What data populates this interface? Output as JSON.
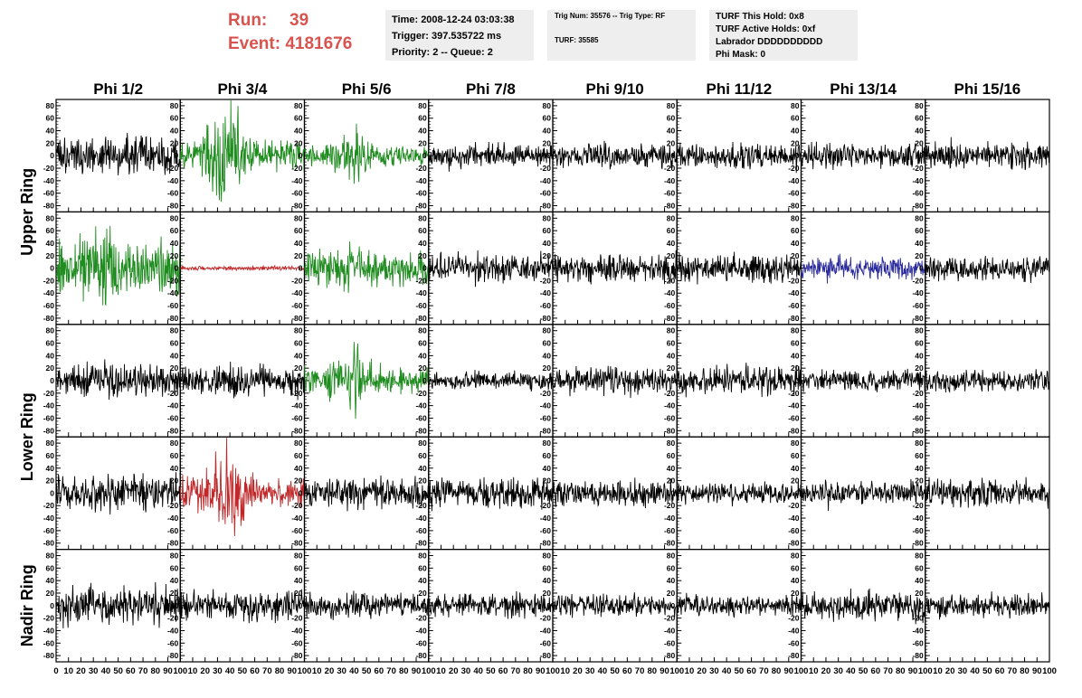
{
  "header": {
    "run_label": "Run:",
    "run_value": "39",
    "event_label": "Event:",
    "event_value": "4181676"
  },
  "info_time": {
    "time": "Time: 2008-12-24 03:03:38",
    "trigger": "Trigger: 397.535722 ms",
    "priority": "Priority: 2 -- Queue: 2"
  },
  "info_trig": {
    "trig": "Trig Num: 35576 -- Trig Type: RF",
    "turf": "TURF: 35585"
  },
  "info_turf": {
    "hold": "TURF This Hold: 0x8",
    "active": "TURF Active Holds: 0xf",
    "labrador": "Labrador DDDDDDDDDD",
    "phimask": "Phi Mask: 0"
  },
  "chart_data": {
    "type": "line",
    "columns": [
      "Phi 1/2",
      "Phi 3/4",
      "Phi 5/6",
      "Phi 7/8",
      "Phi 9/10",
      "Phi 11/12",
      "Phi 13/14",
      "Phi 15/16"
    ],
    "row_groups": [
      {
        "label": "Upper Ring",
        "rows": [
          0,
          1
        ]
      },
      {
        "label": "Lower Ring",
        "rows": [
          2,
          3
        ]
      },
      {
        "label": "Nadir Ring",
        "rows": [
          4
        ]
      }
    ],
    "xlim": [
      0,
      100
    ],
    "ylim": [
      -90,
      90
    ],
    "yticks": [
      -80,
      -60,
      -40,
      -20,
      0,
      20,
      40,
      60,
      80
    ],
    "first_panel_xticks": [
      "0",
      "10",
      "20",
      "30",
      "40",
      "50",
      "60",
      "70",
      "80",
      "90",
      "100"
    ],
    "panel_xticks": [
      "10",
      "20",
      "30",
      "40",
      "50",
      "60",
      "70",
      "80",
      "90",
      "100"
    ],
    "colors": {
      "normal": "#000000",
      "green": "#1f8c1f",
      "red": "#c0282a",
      "blue": "#2a2a9c"
    },
    "panels": [
      [
        {
          "color": "normal",
          "amp": 18,
          "burst": 0
        },
        {
          "color": "green",
          "amp": 14,
          "burst": 38
        },
        {
          "color": "green",
          "amp": 9,
          "burst": 20
        },
        {
          "color": "normal",
          "amp": 12,
          "burst": 0
        },
        {
          "color": "normal",
          "amp": 11,
          "burst": 0
        },
        {
          "color": "normal",
          "amp": 12,
          "burst": 0
        },
        {
          "color": "normal",
          "amp": 12,
          "burst": 0
        },
        {
          "color": "normal",
          "amp": 14,
          "burst": 0
        }
      ],
      [
        {
          "color": "green",
          "amp": 24,
          "burst": 18
        },
        {
          "color": "red",
          "amp": 2,
          "burst": 0
        },
        {
          "color": "green",
          "amp": 16,
          "burst": 6
        },
        {
          "color": "normal",
          "amp": 14,
          "burst": 0
        },
        {
          "color": "normal",
          "amp": 14,
          "burst": 0
        },
        {
          "color": "normal",
          "amp": 13,
          "burst": 0
        },
        {
          "color": "blue",
          "amp": 11,
          "burst": 0
        },
        {
          "color": "normal",
          "amp": 11,
          "burst": 0
        }
      ],
      [
        {
          "color": "normal",
          "amp": 15,
          "burst": 0
        },
        {
          "color": "normal",
          "amp": 15,
          "burst": 0
        },
        {
          "color": "green",
          "amp": 12,
          "burst": 22
        },
        {
          "color": "normal",
          "amp": 8,
          "burst": 0
        },
        {
          "color": "normal",
          "amp": 12,
          "burst": 0
        },
        {
          "color": "normal",
          "amp": 14,
          "burst": 0
        },
        {
          "color": "normal",
          "amp": 10,
          "burst": 0
        },
        {
          "color": "normal",
          "amp": 10,
          "burst": 0
        }
      ],
      [
        {
          "color": "normal",
          "amp": 17,
          "burst": 0
        },
        {
          "color": "red",
          "amp": 14,
          "burst": 34
        },
        {
          "color": "normal",
          "amp": 14,
          "burst": 0
        },
        {
          "color": "normal",
          "amp": 14,
          "burst": 0
        },
        {
          "color": "normal",
          "amp": 12,
          "burst": 0
        },
        {
          "color": "normal",
          "amp": 10,
          "burst": 0
        },
        {
          "color": "normal",
          "amp": 12,
          "burst": 0
        },
        {
          "color": "normal",
          "amp": 13,
          "burst": 0
        }
      ],
      [
        {
          "color": "normal",
          "amp": 18,
          "burst": 0
        },
        {
          "color": "normal",
          "amp": 14,
          "burst": 0
        },
        {
          "color": "normal",
          "amp": 12,
          "burst": 0
        },
        {
          "color": "normal",
          "amp": 11,
          "burst": 0
        },
        {
          "color": "normal",
          "amp": 10,
          "burst": 0
        },
        {
          "color": "normal",
          "amp": 10,
          "burst": 0
        },
        {
          "color": "normal",
          "amp": 14,
          "burst": 0
        },
        {
          "color": "normal",
          "amp": 11,
          "burst": 0
        }
      ]
    ]
  }
}
